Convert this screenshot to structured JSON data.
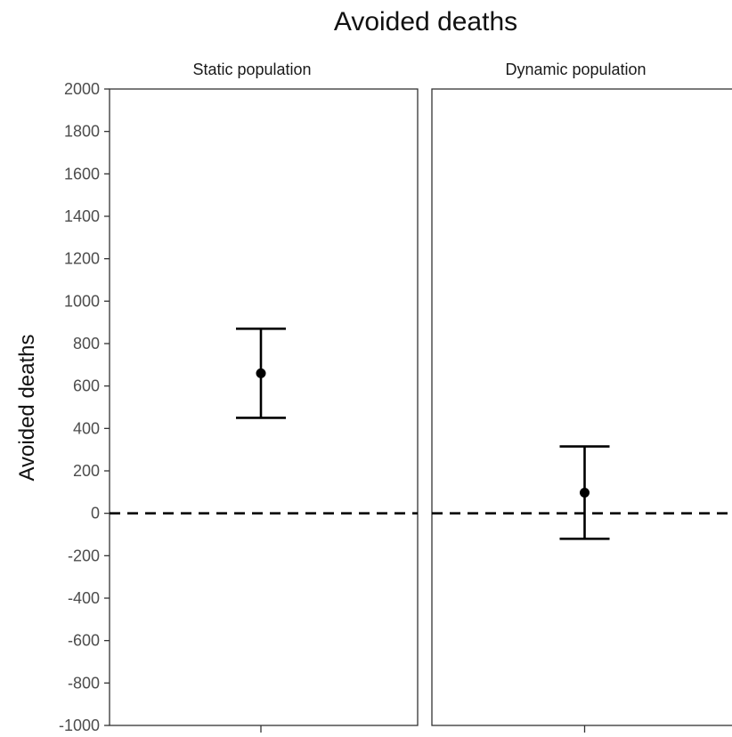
{
  "chart_data": {
    "type": "errorbar",
    "title": "Avoided deaths",
    "ylabel": "Avoided deaths",
    "xlabel": "",
    "ylim": [
      -1000,
      2000
    ],
    "yticks": [
      -1000,
      -800,
      -600,
      -400,
      -200,
      0,
      200,
      400,
      600,
      800,
      1000,
      1200,
      1400,
      1600,
      1800,
      2000
    ],
    "reference_line": {
      "y": 0,
      "style": "dashed"
    },
    "grid": false,
    "panels": [
      {
        "label": "Static population",
        "estimate": 660,
        "lower": 450,
        "upper": 870
      },
      {
        "label": "Dynamic population",
        "estimate": 97,
        "lower": -120,
        "upper": 315
      }
    ]
  }
}
